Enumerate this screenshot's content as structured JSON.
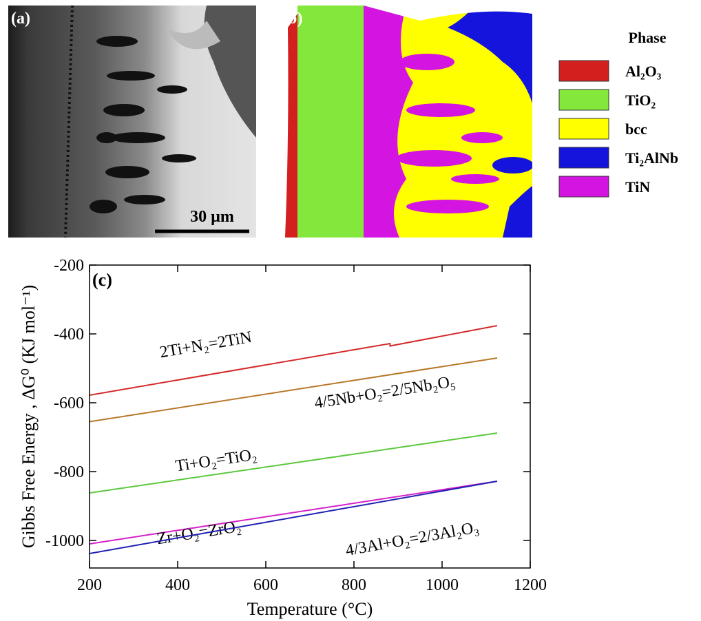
{
  "panels": {
    "a": {
      "label": "(a)",
      "scale_bar": "30 µm"
    },
    "b": {
      "label": "(b)"
    }
  },
  "legend": {
    "title": "Phase",
    "items": [
      {
        "name": "Al₂O₃",
        "color": "#d41f1f"
      },
      {
        "name": "TiO₂",
        "color": "#84e83c"
      },
      {
        "name": "bcc",
        "color": "#ffff00"
      },
      {
        "name": "Ti₂AlNb",
        "color": "#1414dc"
      },
      {
        "name": "TiN",
        "color": "#d414e0"
      }
    ]
  },
  "chart_data": {
    "type": "line",
    "panel_label": "(c)",
    "x_label": "Temperature (°C)",
    "y_label": "Gibbs Free Energy , ΔG⁰ (KJ mol⁻¹)",
    "xlim": [
      200,
      1200
    ],
    "xticks": [
      200,
      400,
      600,
      800,
      1000,
      1200
    ],
    "ylim": [
      -1080,
      -200
    ],
    "yticks": [
      -200,
      -400,
      -600,
      -800,
      -1000
    ],
    "series": [
      {
        "name": "2Ti+N₂=2TiN",
        "color": "#d42a2a",
        "x": [
          200,
          882,
          882,
          1125
        ],
        "values": [
          -578,
          -428,
          -435,
          -376
        ]
      },
      {
        "name": "4/5Nb+O₂=2/5Nb₂O₅",
        "color": "#b8782a",
        "x": [
          200,
          1125
        ],
        "values": [
          -655,
          -470
        ]
      },
      {
        "name": "Ti+O₂=TiO₂",
        "color": "#5cc83c",
        "x": [
          200,
          1125
        ],
        "values": [
          -862,
          -688
        ]
      },
      {
        "name": "Zr+O₂=ZrO₂",
        "color": "#d420c8",
        "x": [
          200,
          1125
        ],
        "values": [
          -1010,
          -828
        ]
      },
      {
        "name": "4/3Al+O₂=2/3Al₂O₃",
        "color": "#2020b4",
        "x": [
          200,
          1125
        ],
        "values": [
          -1038,
          -828
        ]
      }
    ]
  }
}
